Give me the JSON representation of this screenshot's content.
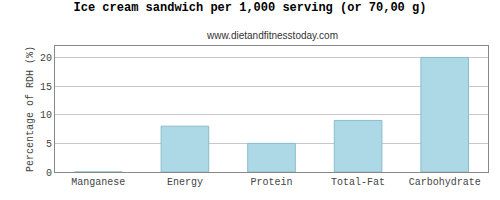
{
  "chart_data": {
    "type": "bar",
    "title": "Ice cream sandwich per 1,000 serving (or 70,00 g)",
    "subtitle": "www.dietandfitnesstoday.com",
    "categories": [
      "Manganese",
      "Energy",
      "Protein",
      "Total-Fat",
      "Carbohydrate"
    ],
    "values": [
      0,
      8,
      5,
      9,
      20
    ],
    "color": "#add8e6",
    "ylabel": "Percentage of RDH (%)",
    "ylim": [
      0,
      22
    ],
    "yticks": [
      0,
      5,
      10,
      15,
      20
    ],
    "grid": true
  }
}
